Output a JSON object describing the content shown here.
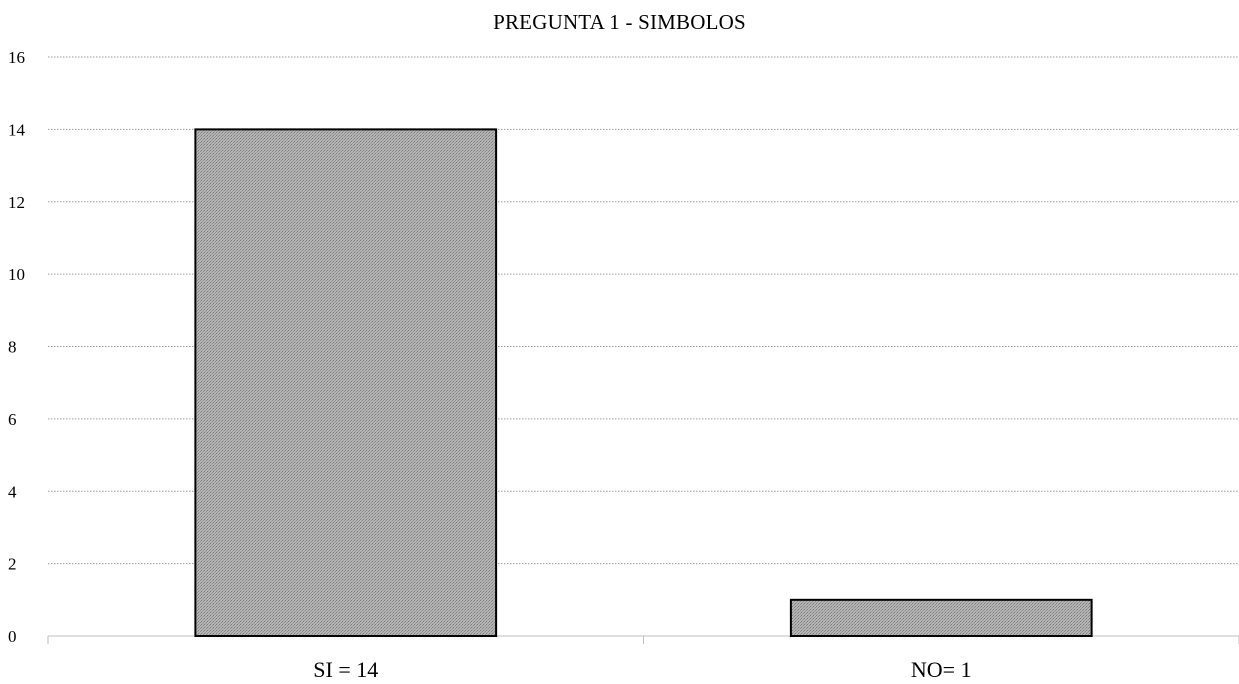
{
  "chart_data": {
    "type": "bar",
    "title": "PREGUNTA 1 - SIMBOLOS",
    "categories": [
      "SI = 14",
      "NO= 1"
    ],
    "values": [
      14,
      1
    ],
    "xlabel": "",
    "ylabel": "",
    "ylim": [
      0,
      16
    ],
    "yticks": [
      0,
      2,
      4,
      6,
      8,
      10,
      12,
      14,
      16
    ],
    "grid": true,
    "legend": "none",
    "bar_color": "#a8a8a8",
    "bar_border_color": "#000000"
  }
}
